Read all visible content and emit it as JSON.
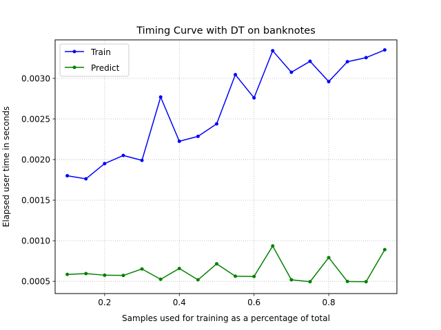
{
  "chart_data": {
    "type": "line",
    "title": "Timing Curve with DT on banknotes",
    "xlabel": "Samples used for training as a percentage of total",
    "ylabel": "Elapsed user time in seconds",
    "xlim": [
      0.0675,
      0.9825
    ],
    "ylim": [
      0.000349,
      0.003474
    ],
    "xticks": [
      0.2,
      0.4,
      0.6,
      0.8
    ],
    "xtick_labels": [
      "0.2",
      "0.4",
      "0.6",
      "0.8"
    ],
    "yticks": [
      0.0005,
      0.001,
      0.0015,
      0.002,
      0.0025,
      0.003
    ],
    "ytick_labels": [
      "0.0005",
      "0.0010",
      "0.0015",
      "0.0020",
      "0.0025",
      "0.0030"
    ],
    "grid": true,
    "legend_position": "top-left",
    "x": [
      0.1,
      0.15,
      0.2,
      0.25,
      0.3,
      0.35,
      0.4,
      0.45,
      0.5,
      0.55,
      0.6,
      0.65,
      0.7,
      0.75,
      0.8,
      0.85,
      0.9,
      0.95
    ],
    "series": [
      {
        "name": "Train",
        "color": "#0000ff",
        "values": [
          0.0018,
          0.001762,
          0.00195,
          0.00205,
          0.00199,
          0.00277,
          0.002225,
          0.002285,
          0.00244,
          0.003045,
          0.00276,
          0.00334,
          0.003075,
          0.00321,
          0.00296,
          0.003205,
          0.003255,
          0.00335
        ]
      },
      {
        "name": "Predict",
        "color": "#008000",
        "values": [
          0.000585,
          0.000595,
          0.000575,
          0.000572,
          0.000652,
          0.000525,
          0.000658,
          0.000518,
          0.000715,
          0.000563,
          0.00056,
          0.000935,
          0.000518,
          0.000495,
          0.000792,
          0.000498,
          0.000495,
          0.00089
        ]
      }
    ]
  }
}
